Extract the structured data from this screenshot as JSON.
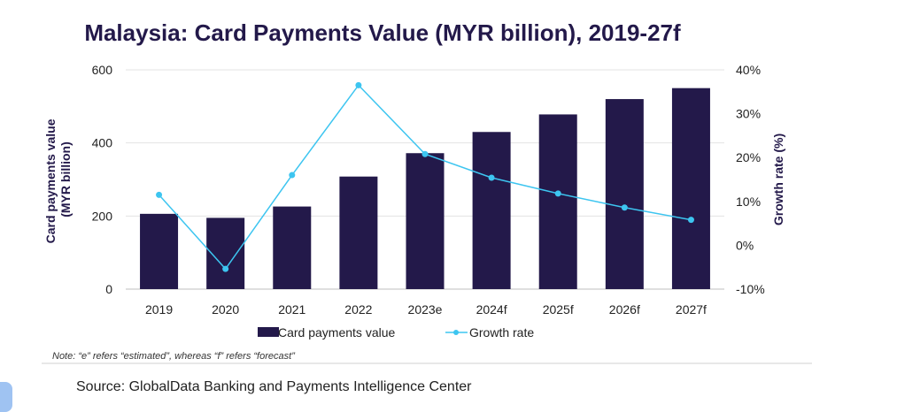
{
  "chart_data": {
    "type": "bar",
    "title": "Malaysia: Card Payments Value (MYR billion), 2019-27f",
    "categories": [
      "2019",
      "2020",
      "2021",
      "2022",
      "2023e",
      "2024f",
      "2025f",
      "2026f",
      "2027f"
    ],
    "series": [
      {
        "name": "Card payments value",
        "type": "bar",
        "axis": "left",
        "color": "#23194a",
        "values": [
          206,
          195,
          226,
          308,
          372,
          430,
          478,
          520,
          550
        ]
      },
      {
        "name": "Growth rate",
        "type": "line",
        "axis": "right",
        "color": "#3dc5f0",
        "values": [
          11.5,
          -5.4,
          16.0,
          36.5,
          20.8,
          15.4,
          11.8,
          8.6,
          5.8
        ]
      }
    ],
    "ylabel_left": [
      "Card payments value",
      "(MYR billion)"
    ],
    "ylabel_right": "Growth rate (%)",
    "ylim_left": [
      0,
      600
    ],
    "yticks_left": [
      "0",
      "200",
      "400",
      "600"
    ],
    "ylim_right": [
      -10,
      40
    ],
    "yticks_right": [
      "-10%",
      "0%",
      "10%",
      "20%",
      "30%",
      "40%"
    ],
    "grid": true,
    "legend_position": "bottom"
  },
  "note": "Note: “e” refers “estimated”, whereas “f” refers “forecast”",
  "source": "Source: GlobalData Banking and Payments Intelligence Center"
}
